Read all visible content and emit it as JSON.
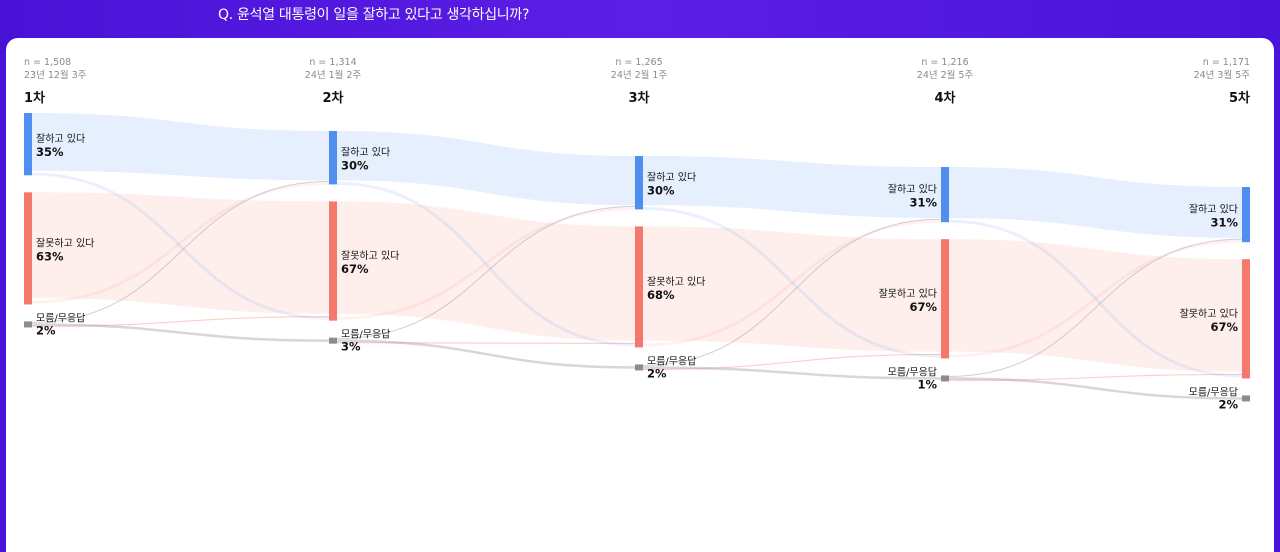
{
  "question": "Q. 윤석열 대통령이 일을 잘하고 있다고 생각하십니까?",
  "chart_data": {
    "type": "sankey",
    "colors": {
      "잘하고 있다": "#4f8ff0",
      "잘못하고 있다": "#f4786b",
      "모름/무응답": "#8c8c8c"
    },
    "waves": [
      {
        "name": "1차",
        "n": "n = 1,508",
        "date": "23년 12월 3주",
        "nodes": [
          {
            "category": "잘하고 있다",
            "label": "잘하고 있다",
            "value": 35,
            "value_label": "35%"
          },
          {
            "category": "잘못하고 있다",
            "label": "잘못하고 있다",
            "value": 63,
            "value_label": "63%"
          },
          {
            "category": "모름/무응답",
            "label": "모름/무응답",
            "value": 2,
            "value_label": "2%"
          }
        ]
      },
      {
        "name": "2차",
        "n": "n = 1,314",
        "date": "24년 1월 2주",
        "nodes": [
          {
            "category": "잘하고 있다",
            "label": "잘하고 있다",
            "value": 30,
            "value_label": "30%"
          },
          {
            "category": "잘못하고 있다",
            "label": "잘못하고 있다",
            "value": 67,
            "value_label": "67%"
          },
          {
            "category": "모름/무응답",
            "label": "모름/무응답",
            "value": 3,
            "value_label": "3%"
          }
        ]
      },
      {
        "name": "3차",
        "n": "n = 1,265",
        "date": "24년 2월 1주",
        "nodes": [
          {
            "category": "잘하고 있다",
            "label": "잘하고 있다",
            "value": 30,
            "value_label": "30%"
          },
          {
            "category": "잘못하고 있다",
            "label": "잘못하고 있다",
            "value": 68,
            "value_label": "68%"
          },
          {
            "category": "모름/무응답",
            "label": "모름/무응답",
            "value": 2,
            "value_label": "2%"
          }
        ]
      },
      {
        "name": "4차",
        "n": "n = 1,216",
        "date": "24년 2월 5주",
        "nodes": [
          {
            "category": "잘하고 있다",
            "label": "잘하고 있다",
            "value": 31,
            "value_label": "31%"
          },
          {
            "category": "잘못하고 있다",
            "label": "잘못하고 있다",
            "value": 67,
            "value_label": "67%"
          },
          {
            "category": "모름/무응답",
            "label": "모름/무응답",
            "value": 1,
            "value_label": "1%"
          }
        ]
      },
      {
        "name": "5차",
        "n": "n = 1,171",
        "date": "24년 3월 5주",
        "nodes": [
          {
            "category": "잘하고 있다",
            "label": "잘하고 있다",
            "value": 31,
            "value_label": "31%"
          },
          {
            "category": "잘못하고 있다",
            "label": "잘못하고 있다",
            "value": 67,
            "value_label": "67%"
          },
          {
            "category": "모름/무응답",
            "label": "모름/무응답",
            "value": 2,
            "value_label": "2%"
          }
        ]
      }
    ]
  }
}
